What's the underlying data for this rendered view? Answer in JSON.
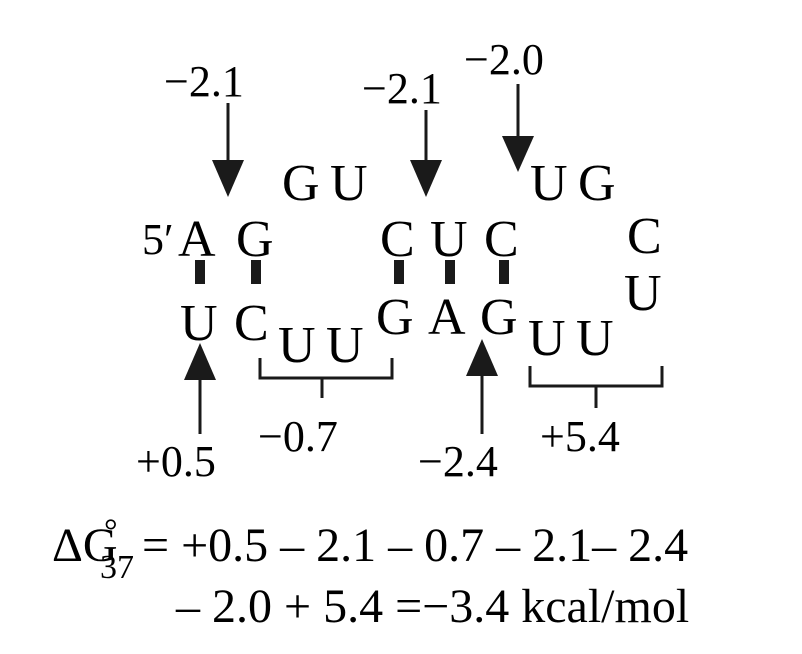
{
  "strand_5prime": {
    "label": "5′",
    "bases": [
      "A",
      "G",
      "C",
      "U",
      "C"
    ]
  },
  "strand_3prime": {
    "bases": [
      "U",
      "C",
      "G",
      "A",
      "G"
    ]
  },
  "internal_loop": {
    "top": [
      "G",
      "U"
    ],
    "bottom": [
      "U",
      "U"
    ]
  },
  "hairpin_loop": [
    "U",
    "G",
    "C",
    "U",
    "U",
    "U"
  ],
  "increments": {
    "ag_stack": "−2.1",
    "cu_stack": "−2.1",
    "dangle": "−2.0",
    "terminal": "+0.5",
    "internal_loop": "−0.7",
    "ua_stack": "−2.4",
    "hairpin": "+5.4"
  },
  "equation": {
    "symbol": "ΔG",
    "subscript": "37",
    "superscript": "°",
    "line1": "= +0.5 – 2.1 – 0.7 – 2.1– 2.4",
    "line2": "– 2.0 + 5.4 =−3.4 kcal/mol"
  }
}
